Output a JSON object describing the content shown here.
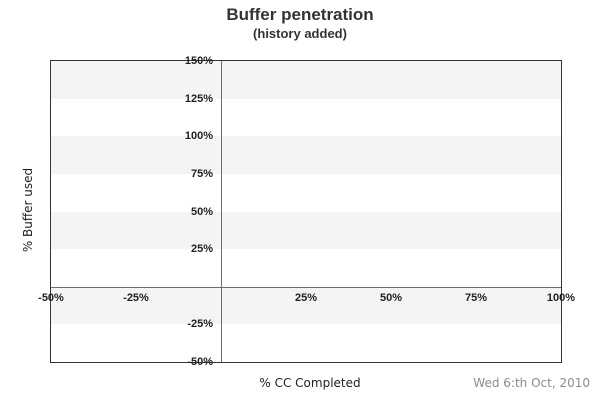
{
  "header": {
    "title": "Buffer penetration",
    "subtitle": "(history added)"
  },
  "footer": {
    "date_label": "Wed 6:th Oct, 2010"
  },
  "chart_data": {
    "type": "scatter",
    "title": "Buffer penetration",
    "subtitle": "(history added)",
    "xlabel": "% CC Completed",
    "ylabel": "% Buffer used",
    "xlim": [
      -50,
      100
    ],
    "ylim": [
      -50,
      150
    ],
    "x_ticks": [
      {
        "value": -50,
        "label": "-50%"
      },
      {
        "value": -25,
        "label": "-25%"
      },
      {
        "value": 25,
        "label": "25%"
      },
      {
        "value": 50,
        "label": "50%"
      },
      {
        "value": 75,
        "label": "75%"
      },
      {
        "value": 100,
        "label": "100%"
      }
    ],
    "y_ticks": [
      {
        "value": 150,
        "label": "150%"
      },
      {
        "value": 125,
        "label": "125%"
      },
      {
        "value": 100,
        "label": "100%"
      },
      {
        "value": 75,
        "label": "75%"
      },
      {
        "value": 50,
        "label": "50%"
      },
      {
        "value": 25,
        "label": "25%"
      },
      {
        "value": -25,
        "label": "-25%"
      },
      {
        "value": -50,
        "label": "-50%"
      }
    ],
    "zero_line_x": 0,
    "zero_line_y": 0,
    "bands": {
      "step": 25,
      "pattern": [
        "gray",
        "white"
      ]
    },
    "series": [],
    "legend": null,
    "grid": false,
    "colors": {
      "band_gray": "#f4f4f4",
      "band_white": "#ffffff",
      "outer_border": "#333333",
      "axis_line": "#6e6e6e",
      "tick_text": "#222222",
      "label_text": "#222222",
      "title_text": "#333333",
      "date_text": "#8c8c8c"
    }
  }
}
